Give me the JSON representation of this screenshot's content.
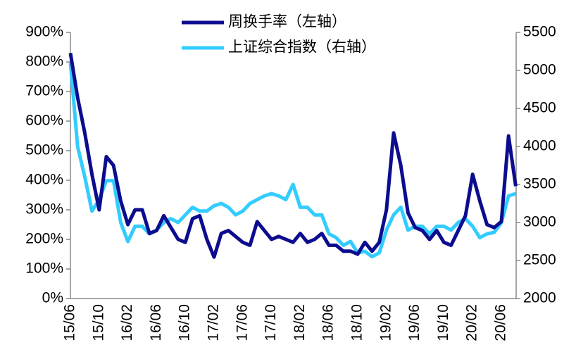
{
  "chart_data": {
    "type": "line",
    "categories": [
      "15/06",
      null,
      null,
      null,
      "15/10",
      null,
      null,
      null,
      "16/02",
      null,
      null,
      null,
      "16/06",
      null,
      null,
      null,
      "16/10",
      null,
      null,
      null,
      "17/02",
      null,
      null,
      null,
      "17/06",
      null,
      null,
      null,
      "17/10",
      null,
      null,
      null,
      "18/02",
      null,
      null,
      null,
      "18/06",
      null,
      null,
      null,
      "18/10",
      null,
      null,
      null,
      "19/02",
      null,
      null,
      null,
      "19/06",
      null,
      null,
      null,
      "19/10",
      null,
      null,
      null,
      "20/02",
      null,
      null,
      null,
      "20/06",
      null,
      null
    ],
    "series": [
      {
        "name": "周换手率（左轴）",
        "color": "#0c0c8f",
        "axis": "y",
        "values": [
          830,
          680,
          560,
          420,
          300,
          480,
          450,
          330,
          250,
          300,
          300,
          220,
          230,
          280,
          240,
          200,
          190,
          270,
          280,
          200,
          140,
          220,
          230,
          210,
          190,
          180,
          260,
          230,
          200,
          210,
          200,
          190,
          220,
          190,
          200,
          220,
          180,
          180,
          160,
          160,
          150,
          190,
          160,
          190,
          300,
          560,
          450,
          290,
          240,
          230,
          200,
          230,
          190,
          180,
          230,
          280,
          420,
          330,
          250,
          240,
          260,
          550,
          380
        ]
      },
      {
        "name": "上证综合指数（右轴）",
        "color": "#33ccff",
        "axis": "y2",
        "values": [
          5100,
          4000,
          3600,
          3150,
          3300,
          3550,
          3550,
          3000,
          2750,
          2950,
          2950,
          2850,
          2900,
          3000,
          3050,
          3000,
          3100,
          3200,
          3150,
          3150,
          3220,
          3250,
          3200,
          3100,
          3150,
          3250,
          3300,
          3350,
          3380,
          3350,
          3300,
          3500,
          3200,
          3200,
          3100,
          3100,
          2850,
          2800,
          2700,
          2750,
          2600,
          2620,
          2550,
          2600,
          2900,
          3100,
          3200,
          2900,
          2950,
          2950,
          2850,
          2950,
          2950,
          2900,
          3000,
          3050,
          2950,
          2800,
          2850,
          2870,
          3000,
          3350,
          3380
        ]
      }
    ],
    "ylim": [
      0,
      900
    ],
    "yticks": [
      {
        "value": 0,
        "label": "0%"
      },
      {
        "value": 100,
        "label": "100%"
      },
      {
        "value": 200,
        "label": "200%"
      },
      {
        "value": 300,
        "label": "300%"
      },
      {
        "value": 400,
        "label": "400%"
      },
      {
        "value": 500,
        "label": "500%"
      },
      {
        "value": 600,
        "label": "600%"
      },
      {
        "value": 700,
        "label": "700%"
      },
      {
        "value": 800,
        "label": "800%"
      },
      {
        "value": 900,
        "label": "900%"
      }
    ],
    "y2lim": [
      2000,
      5500
    ],
    "y2ticks": [
      2000,
      2500,
      3000,
      3500,
      4000,
      4500,
      5000,
      5500
    ],
    "legend": "top"
  }
}
